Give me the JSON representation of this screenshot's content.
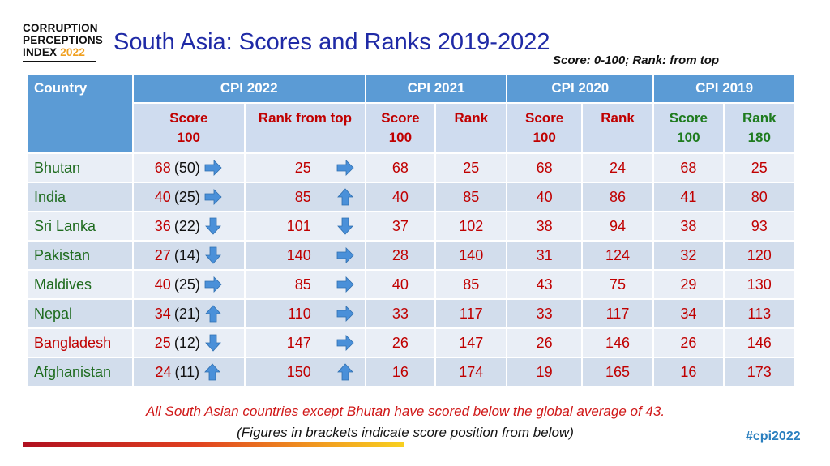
{
  "logo": {
    "line1": "CORRUPTION",
    "line2": "PERCEPTIONS",
    "line3": "INDEX",
    "year": "2022"
  },
  "title": "South Asia: Scores and Ranks 2019-2022",
  "subtitle": "Score: 0-100; Rank: from top",
  "headers": {
    "country": "Country",
    "cpi2022": "CPI 2022",
    "cpi2021": "CPI 2021",
    "cpi2020": "CPI 2020",
    "cpi2019": "CPI 2019"
  },
  "subheaders": {
    "score_label": "Score",
    "score_max": "100",
    "rank_from_top": "Rank from top",
    "rank_label": "Rank",
    "rank_max_2019": "180"
  },
  "rows": [
    {
      "country": "Bhutan",
      "color": "green",
      "score22": "68",
      "pos22": "(50)",
      "score_arrow": "right",
      "rank22": "25",
      "rank_arrow": "right",
      "score21": "68",
      "rank21": "25",
      "score20": "68",
      "rank20": "24",
      "score19": "68",
      "rank19": "25"
    },
    {
      "country": "India",
      "color": "green",
      "score22": "40",
      "pos22": "(25)",
      "score_arrow": "right",
      "rank22": "85",
      "rank_arrow": "up",
      "score21": "40",
      "rank21": "85",
      "score20": "40",
      "rank20": "86",
      "score19": "41",
      "rank19": "80"
    },
    {
      "country": "Sri Lanka",
      "color": "green",
      "score22": "36",
      "pos22": "(22)",
      "score_arrow": "down",
      "rank22": "101",
      "rank_arrow": "down",
      "score21": "37",
      "rank21": "102",
      "score20": "38",
      "rank20": "94",
      "score19": "38",
      "rank19": "93"
    },
    {
      "country": "Pakistan",
      "color": "green",
      "score22": "27",
      "pos22": "(14)",
      "score_arrow": "down",
      "rank22": "140",
      "rank_arrow": "right",
      "score21": "28",
      "rank21": "140",
      "score20": "31",
      "rank20": "124",
      "score19": "32",
      "rank19": "120"
    },
    {
      "country": "Maldives",
      "color": "green",
      "score22": "40",
      "pos22": " (25)",
      "score_arrow": "right",
      "rank22": "85",
      "rank_arrow": "right",
      "score21": "40",
      "rank21": "85",
      "score20": "43",
      "rank20": "75",
      "score19": "29",
      "rank19": "130"
    },
    {
      "country": "Nepal",
      "color": "green",
      "score22": "34",
      "pos22": "(21)",
      "score_arrow": "up",
      "rank22": "110",
      "rank_arrow": "right",
      "score21": "33",
      "rank21": "117",
      "score20": "33",
      "rank20": "117",
      "score19": "34",
      "rank19": "113"
    },
    {
      "country": "Bangladesh",
      "color": "red",
      "score22": "25",
      "pos22": "(12)",
      "score_arrow": "down",
      "rank22": "147",
      "rank_arrow": "right",
      "score21": "26",
      "rank21": "147",
      "score20": "26",
      "rank20": "146",
      "score19": "26",
      "rank19": "146"
    },
    {
      "country": "Afghanistan",
      "color": "green",
      "score22": "24",
      "pos22": "(11)",
      "score_arrow": "up",
      "rank22": "150",
      "rank_arrow": "up",
      "score21": "16",
      "rank21": "174",
      "score20": "19",
      "rank20": "165",
      "score19": "16",
      "rank19": "173"
    }
  ],
  "note1": "All South Asian countries except Bhutan have scored below the global average of 43.",
  "note2": "(Figures in brackets indicate score position from below)",
  "hashtag": "#cpi2022",
  "colors": {
    "header_blue": "#5b9bd5",
    "red": "#c00000",
    "green": "#1e7b1e",
    "title_blue": "#1f2aa6",
    "arrow_blue": "#4a90d9"
  }
}
